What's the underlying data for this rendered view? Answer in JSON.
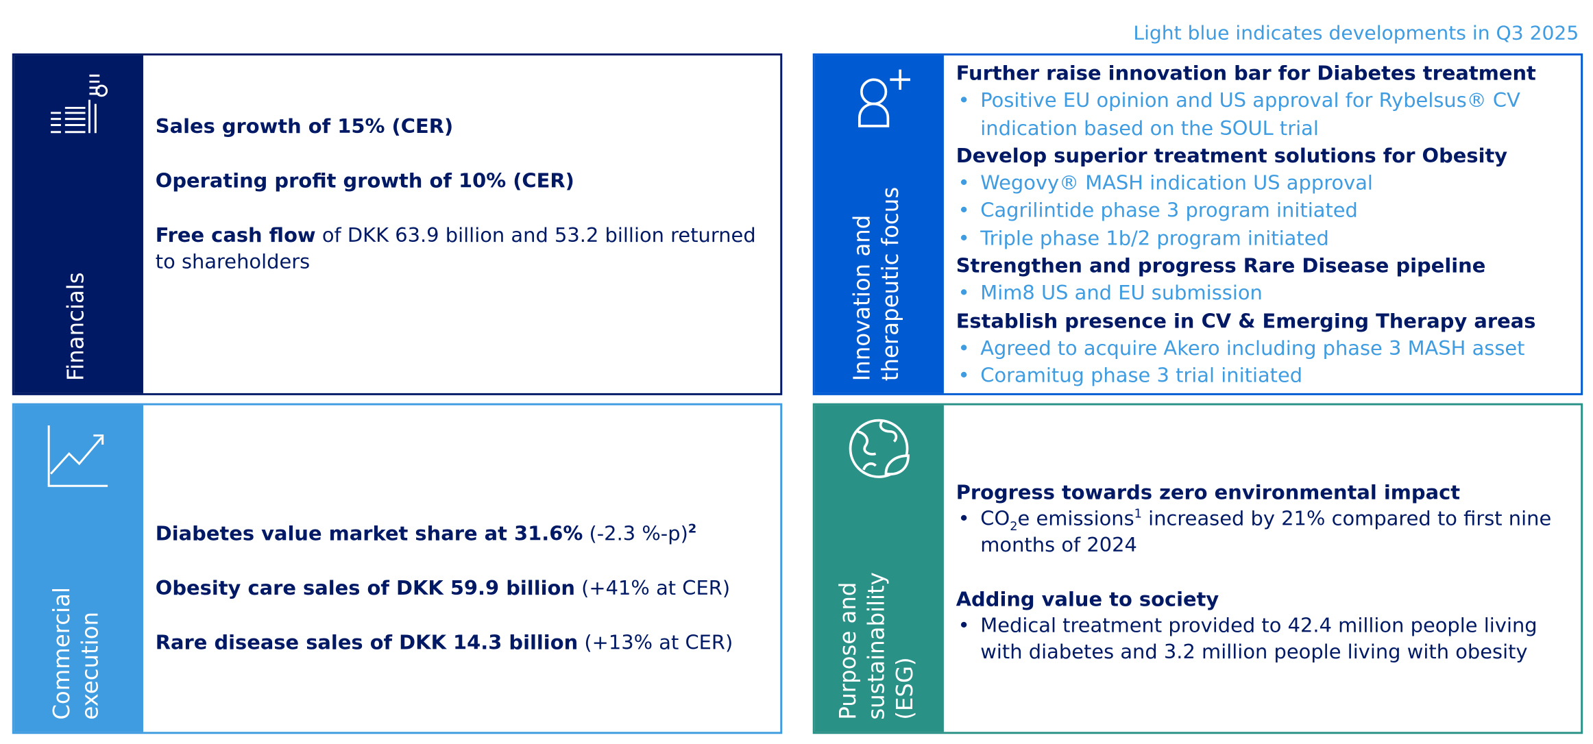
{
  "note": "Light blue indicates developments in Q3 2025",
  "financials": {
    "label": "Financials",
    "items": [
      {
        "bold": "Sales growth of 15% (CER)"
      },
      {
        "bold": "Operating profit growth of 10% (CER)"
      },
      {
        "bold": "Free cash flow",
        "text": " of DKK 63.9 billion and 53.2 billion returned to shareholders"
      }
    ]
  },
  "innovation": {
    "label": "Innovation and therapeutic focus",
    "groups": [
      {
        "heading": "Further raise innovation bar for Diabetes treatment",
        "bullets": [
          "Positive EU opinion and US approval for Rybelsus® CV indication based on the SOUL trial"
        ]
      },
      {
        "heading": "Develop superior treatment solutions for Obesity",
        "bullets": [
          "Wegovy® MASH indication US approval",
          "Cagrilintide phase 3 program initiated",
          "Triple phase 1b/2 program initiated"
        ]
      },
      {
        "heading": "Strengthen and progress Rare Disease pipeline",
        "bullets": [
          "Mim8 US and EU submission"
        ]
      },
      {
        "heading": "Establish presence in CV & Emerging Therapy areas",
        "bullets": [
          "Agreed to acquire Akero including phase 3 MASH asset",
          "Coramitug phase 3 trial initiated"
        ]
      }
    ]
  },
  "commercial": {
    "label": "Commercial execution",
    "items": [
      {
        "bold": "Diabetes value market share at 31.6%",
        "text": " (-2.3 %-p)",
        "sup": "2"
      },
      {
        "bold": "Obesity care sales of DKK 59.9 billion",
        "text": " (+41% at CER)"
      },
      {
        "bold": "Rare disease sales of DKK 14.3 billion",
        "text": " (+13% at CER)"
      }
    ]
  },
  "purpose": {
    "label": "Purpose and sustainability (ESG)",
    "groups": [
      {
        "heading": "Progress towards zero environmental impact",
        "bullets": [
          {
            "parts": [
              "CO",
              "2",
              "e emissions",
              "1",
              " increased by 21% compared to first nine months of 2024"
            ]
          }
        ]
      },
      {
        "heading": "Adding value to society",
        "bullets": [
          "Medical treatment provided to 42.4 million people living with diabetes and 3.2 million people living with obesity"
        ]
      }
    ]
  }
}
